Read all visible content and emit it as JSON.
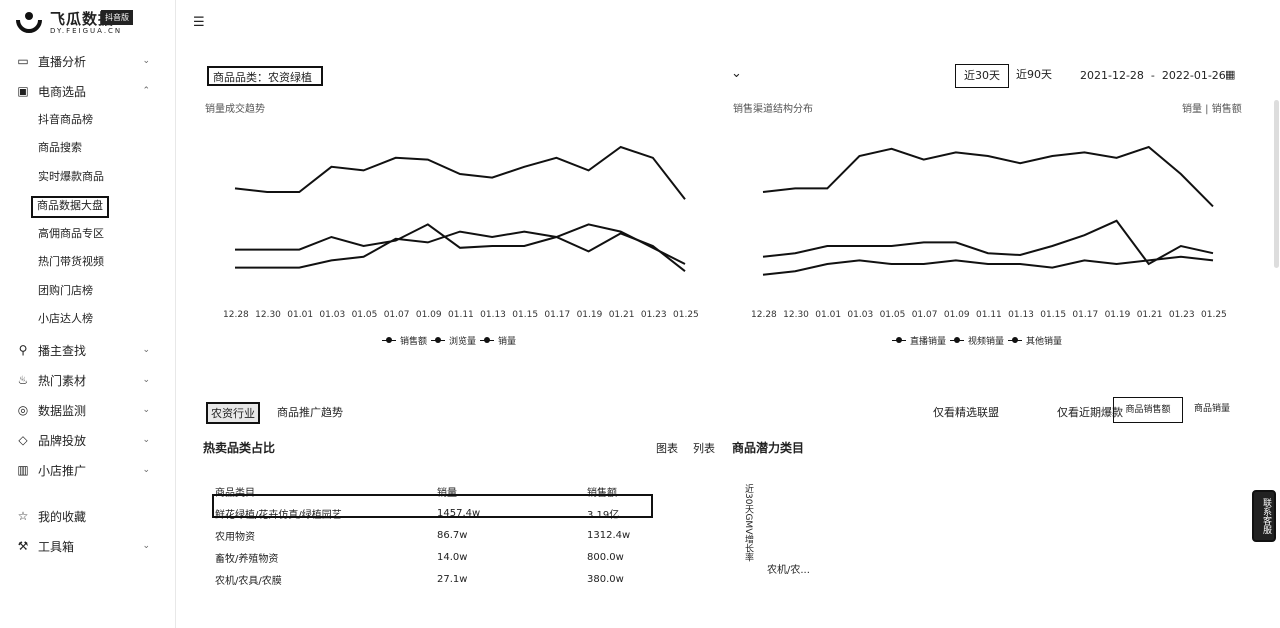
{
  "brand": {
    "title": "飞瓜数据",
    "badge": "抖音版",
    "url": "DY.FEIGUA.CN"
  },
  "sidebar": {
    "items": [
      {
        "label": "直播分析",
        "icon": "monitor-icon"
      },
      {
        "label": "电商选品",
        "icon": "shopping-icon"
      },
      {
        "label": "播主查找",
        "icon": "user-search-icon"
      },
      {
        "label": "热门素材",
        "icon": "flame-icon"
      },
      {
        "label": "数据监测",
        "icon": "target-icon"
      },
      {
        "label": "品牌投放",
        "icon": "tag-icon"
      },
      {
        "label": "小店推广",
        "icon": "store-icon"
      },
      {
        "label": "我的收藏",
        "icon": "star-icon"
      },
      {
        "label": "工具箱",
        "icon": "wrench-icon"
      }
    ],
    "sub_items": [
      "抖音商品榜",
      "商品搜索",
      "实时爆款商品",
      "商品数据大盘",
      "高佣商品专区",
      "热门带货视频",
      "团购门店榜",
      "小店达人榜"
    ],
    "active_sub": "商品数据大盘"
  },
  "header": {
    "menu_icon": "hamburger-icon"
  },
  "filter": {
    "category_label": "商品品类：农资绿植",
    "range_buttons": [
      "近30天",
      "近90天"
    ],
    "active_range": "近30天",
    "date_range": "2021-12-28  -  2022-01-26"
  },
  "chart_data": [
    {
      "type": "line",
      "title": "销量成交趋势",
      "x": [
        "12.28",
        "12.30",
        "01.01",
        "01.03",
        "01.05",
        "01.07",
        "01.09",
        "01.11",
        "01.13",
        "01.15",
        "01.17",
        "01.19",
        "01.21",
        "01.23",
        "01.25"
      ],
      "series": [
        {
          "name": "销售额",
          "values": [
            62,
            60,
            60,
            74,
            72,
            79,
            78,
            70,
            68,
            74,
            79,
            72,
            85,
            79,
            56
          ]
        },
        {
          "name": "浏览量",
          "values": [
            28,
            28,
            28,
            35,
            30,
            33,
            42,
            29,
            30,
            30,
            35,
            42,
            38,
            29,
            20
          ]
        },
        {
          "name": "销量",
          "values": [
            18,
            18,
            18,
            22,
            24,
            34,
            32,
            38,
            35,
            38,
            35,
            27,
            37,
            30,
            16
          ]
        }
      ]
    },
    {
      "type": "line",
      "title": "销售渠道结构分布",
      "x": [
        "12.28",
        "12.30",
        "01.01",
        "01.03",
        "01.05",
        "01.07",
        "01.09",
        "01.11",
        "01.13",
        "01.15",
        "01.17",
        "01.19",
        "01.21",
        "01.23",
        "01.25"
      ],
      "series": [
        {
          "name": "直播销量",
          "values": [
            60,
            62,
            62,
            80,
            84,
            78,
            82,
            80,
            76,
            80,
            82,
            79,
            85,
            70,
            52
          ]
        },
        {
          "name": "视频销量",
          "values": [
            24,
            26,
            30,
            30,
            30,
            32,
            32,
            26,
            25,
            30,
            36,
            44,
            20,
            30,
            26
          ]
        },
        {
          "name": "其他销量",
          "values": [
            14,
            16,
            20,
            22,
            20,
            20,
            22,
            20,
            20,
            18,
            22,
            20,
            22,
            24,
            22
          ]
        }
      ],
      "right_label": "销量 | 销售额"
    }
  ],
  "ranking": {
    "tabs": [
      "农资行业",
      "商品推广趋势"
    ],
    "active_tab": "农资行业",
    "options": [
      "仅看精选联盟",
      "仅看近期爆款"
    ],
    "toggles": [
      "商品销售额",
      "商品销量"
    ],
    "active_toggle": "商品销售额"
  },
  "category_share": {
    "title": "热卖品类占比",
    "view_tabs": [
      "图表",
      "列表"
    ],
    "potential_title": "商品潜力类目",
    "columns": [
      "商品类目",
      "销量",
      "销售额"
    ],
    "rows": [
      [
        "鲜花绿植/花卉仿真/绿植园艺",
        "1457.4w",
        "3.19亿"
      ],
      [
        "农用物资",
        "86.7w",
        "1312.4w"
      ],
      [
        "畜牧/养殖物资",
        "14.0w",
        "800.0w"
      ],
      [
        "农机/农具/农膜",
        "27.1w",
        "380.0w"
      ]
    ],
    "vertical_axis_label": "近30天GMV增长率",
    "bubble_label": "农机/农..."
  },
  "side_pill": "联系客服"
}
